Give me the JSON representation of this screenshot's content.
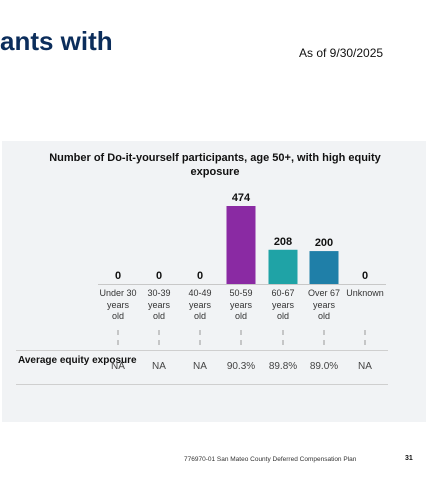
{
  "header": {
    "title_fragment": "ants with",
    "as_of": "As of 9/30/2025"
  },
  "chart_data": {
    "type": "bar",
    "title": "Number of Do-it-yourself participants, age 50+, with high equity exposure",
    "categories": [
      "Under 30 years old",
      "30-39 years old",
      "40-49 years old",
      "50-59 years old",
      "60-67 years old",
      "Over 67 years old",
      "Unknown"
    ],
    "category_lines": [
      [
        "Under 30",
        "years",
        "old"
      ],
      [
        "30-39",
        "years",
        "old"
      ],
      [
        "40-49",
        "years",
        "old"
      ],
      [
        "50-59",
        "years",
        "old"
      ],
      [
        "60-67",
        "years",
        "old"
      ],
      [
        "Over 67",
        "years",
        "old"
      ],
      [
        "Unknown"
      ]
    ],
    "values": [
      0,
      0,
      0,
      474,
      208,
      200,
      0
    ],
    "bar_colors": [
      "#7f3f98",
      "#7f3f98",
      "#7f3f98",
      "#8a2aa3",
      "#1fa3a6",
      "#1f7fa8",
      "#1f7fa8"
    ],
    "ylim": [
      0,
      474
    ],
    "xlabel": "",
    "ylabel": "",
    "grid": false,
    "row": {
      "label": "Average equity exposure",
      "values": [
        "NA",
        "NA",
        "NA",
        "90.3%",
        "89.8%",
        "89.0%",
        "NA"
      ]
    }
  },
  "footer": {
    "text": "776970-01 San Mateo County Deferred Compensation Plan",
    "page": "31"
  }
}
